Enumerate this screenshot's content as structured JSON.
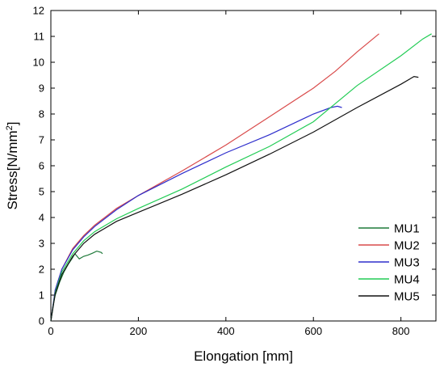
{
  "chart_data": {
    "type": "line",
    "xlabel": "Elongation [mm]",
    "ylabel": {
      "prefix": "Stress[N/mm",
      "superscript": "2",
      "suffix": "]"
    },
    "xlim": [
      0,
      880
    ],
    "ylim": [
      0,
      12
    ],
    "x_ticks": [
      0,
      200,
      400,
      600,
      800
    ],
    "y_ticks": [
      0,
      1,
      2,
      3,
      4,
      5,
      6,
      7,
      8,
      9,
      10,
      11,
      12
    ],
    "grid": false,
    "legend_position": "bottom-right",
    "series": [
      {
        "name": "MU1",
        "color": "#1f7a3a",
        "points": [
          [
            0,
            0
          ],
          [
            5,
            0.6
          ],
          [
            10,
            1.0
          ],
          [
            20,
            1.5
          ],
          [
            30,
            1.9
          ],
          [
            40,
            2.2
          ],
          [
            50,
            2.45
          ],
          [
            55,
            2.6
          ],
          [
            60,
            2.5
          ],
          [
            65,
            2.4
          ],
          [
            70,
            2.45
          ],
          [
            75,
            2.5
          ],
          [
            85,
            2.55
          ],
          [
            95,
            2.62
          ],
          [
            105,
            2.7
          ],
          [
            115,
            2.65
          ],
          [
            118,
            2.6
          ]
        ]
      },
      {
        "name": "MU2",
        "color": "#d94b4b",
        "points": [
          [
            0,
            0
          ],
          [
            10,
            1.2
          ],
          [
            25,
            2.0
          ],
          [
            50,
            2.8
          ],
          [
            75,
            3.3
          ],
          [
            100,
            3.7
          ],
          [
            150,
            4.35
          ],
          [
            200,
            4.85
          ],
          [
            300,
            5.8
          ],
          [
            400,
            6.8
          ],
          [
            500,
            7.9
          ],
          [
            600,
            9.0
          ],
          [
            650,
            9.65
          ],
          [
            700,
            10.4
          ],
          [
            750,
            11.1
          ]
        ]
      },
      {
        "name": "MU3",
        "color": "#2e2ecc",
        "points": [
          [
            0,
            0
          ],
          [
            10,
            1.2
          ],
          [
            25,
            2.0
          ],
          [
            50,
            2.75
          ],
          [
            75,
            3.25
          ],
          [
            100,
            3.65
          ],
          [
            150,
            4.3
          ],
          [
            200,
            4.85
          ],
          [
            300,
            5.7
          ],
          [
            400,
            6.5
          ],
          [
            500,
            7.2
          ],
          [
            600,
            8.0
          ],
          [
            640,
            8.25
          ],
          [
            655,
            8.3
          ],
          [
            665,
            8.25
          ]
        ]
      },
      {
        "name": "MU4",
        "color": "#22cc55",
        "points": [
          [
            0,
            0
          ],
          [
            10,
            1.1
          ],
          [
            25,
            1.9
          ],
          [
            50,
            2.6
          ],
          [
            75,
            3.1
          ],
          [
            100,
            3.45
          ],
          [
            150,
            3.95
          ],
          [
            200,
            4.35
          ],
          [
            300,
            5.1
          ],
          [
            400,
            5.95
          ],
          [
            500,
            6.75
          ],
          [
            600,
            7.7
          ],
          [
            650,
            8.4
          ],
          [
            700,
            9.1
          ],
          [
            800,
            10.25
          ],
          [
            850,
            10.9
          ],
          [
            870,
            11.1
          ]
        ]
      },
      {
        "name": "MU5",
        "color": "#111111",
        "points": [
          [
            0,
            0
          ],
          [
            10,
            1.05
          ],
          [
            25,
            1.8
          ],
          [
            50,
            2.5
          ],
          [
            75,
            3.0
          ],
          [
            100,
            3.35
          ],
          [
            150,
            3.85
          ],
          [
            200,
            4.2
          ],
          [
            300,
            4.9
          ],
          [
            400,
            5.65
          ],
          [
            500,
            6.45
          ],
          [
            600,
            7.3
          ],
          [
            700,
            8.25
          ],
          [
            800,
            9.15
          ],
          [
            830,
            9.45
          ],
          [
            840,
            9.42
          ]
        ]
      }
    ]
  }
}
